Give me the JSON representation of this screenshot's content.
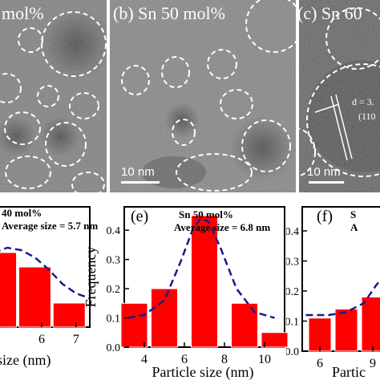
{
  "tem_panels": [
    {
      "label": "mol%",
      "scale_bar": ""
    },
    {
      "label": "(b)  Sn 50 mol%",
      "scale_bar": "10 nm"
    },
    {
      "label": "(c)  Sn  60",
      "scale_bar": "10 nm",
      "annotation_d": "d = 3.",
      "annotation_plane": "(110"
    }
  ],
  "colors": {
    "bar": "#ff0000",
    "fit": "#1a1a8c",
    "circle": "#ffffff"
  },
  "chart_data": [
    {
      "type": "bar",
      "panel_label": "",
      "legend_line1": "40 mol%",
      "legend_line2": "Average size = 5.7 nm",
      "xlabel": "size (nm)",
      "ylabel": "",
      "xticks": [
        6,
        7
      ],
      "xlim": [
        4.6,
        7.4
      ],
      "ylim": [
        0,
        0.5
      ],
      "bars": [
        {
          "x": 4.8,
          "value": 0.31
        },
        {
          "x": 5.8,
          "value": 0.25
        },
        {
          "x": 6.8,
          "value": 0.1
        }
      ],
      "fit_points": [
        [
          4.6,
          0.31
        ],
        [
          5.0,
          0.33
        ],
        [
          5.4,
          0.32
        ],
        [
          5.8,
          0.29
        ],
        [
          6.2,
          0.24
        ],
        [
          6.6,
          0.18
        ],
        [
          7.0,
          0.14
        ],
        [
          7.4,
          0.12
        ]
      ]
    },
    {
      "type": "bar",
      "panel_label": "(e)",
      "legend_line1": "Sn 50 mol%",
      "legend_line2": "Average size = 6.8 nm",
      "xlabel": "Particle size (nm)",
      "ylabel": "Frequency",
      "xticks": [
        4,
        6,
        8,
        10
      ],
      "yticks": [
        0.0,
        0.1,
        0.2,
        0.3,
        0.4
      ],
      "xlim": [
        3,
        11
      ],
      "ylim": [
        0,
        0.48
      ],
      "bars": [
        {
          "x": 3.5,
          "value": 0.15
        },
        {
          "x": 5.0,
          "value": 0.2
        },
        {
          "x": 7.0,
          "value": 0.45
        },
        {
          "x": 9.0,
          "value": 0.15
        },
        {
          "x": 10.5,
          "value": 0.05
        }
      ],
      "fit_points": [
        [
          3.2,
          0.1
        ],
        [
          4.0,
          0.11
        ],
        [
          5.0,
          0.16
        ],
        [
          5.8,
          0.29
        ],
        [
          6.4,
          0.4
        ],
        [
          6.8,
          0.44
        ],
        [
          7.2,
          0.43
        ],
        [
          7.8,
          0.34
        ],
        [
          8.6,
          0.2
        ],
        [
          9.5,
          0.12
        ],
        [
          10.5,
          0.1
        ]
      ]
    },
    {
      "type": "bar",
      "panel_label": "(f)",
      "legend_line1": "S",
      "legend_line2": "A",
      "xlabel": "Partic",
      "ylabel": "",
      "xticks": [
        6,
        9
      ],
      "yticks": [
        0.0,
        0.1,
        0.2,
        0.3,
        0.4
      ],
      "xlim": [
        5,
        10
      ],
      "ylim": [
        0,
        0.48
      ],
      "bars": [
        {
          "x": 6.0,
          "value": 0.11
        },
        {
          "x": 7.5,
          "value": 0.14
        },
        {
          "x": 9.0,
          "value": 0.18
        }
      ],
      "fit_points": [
        [
          5.2,
          0.12
        ],
        [
          6.5,
          0.12
        ],
        [
          7.5,
          0.13
        ],
        [
          8.5,
          0.16
        ],
        [
          9.2,
          0.22
        ],
        [
          9.8,
          0.26
        ]
      ]
    }
  ]
}
